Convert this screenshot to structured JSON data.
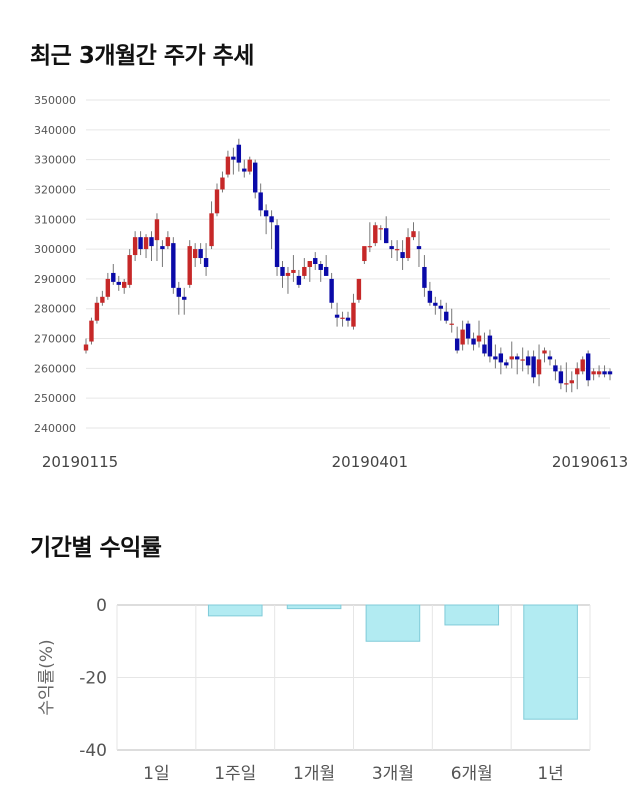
{
  "page": {
    "title_chart1": "최근 3개월간 주가 추세",
    "title_chart2": "기간별 수익률"
  },
  "colors": {
    "up": "#c62828",
    "down": "#0a0aa8",
    "bar_fill": "#b2ebf2",
    "bar_stroke": "#80cbd8",
    "grid": "#e6e6e6"
  },
  "chart_data": [
    {
      "type": "candlestick",
      "title": "최근 3개월간 주가 추세",
      "ylim": [
        240000,
        350000
      ],
      "y_ticks": [
        "350000",
        "340000",
        "330000",
        "320000",
        "310000",
        "300000",
        "290000",
        "280000",
        "270000",
        "260000",
        "250000",
        "240000"
      ],
      "x_tick_labels": [
        "20190115",
        "20190401",
        "20190613"
      ],
      "ohlc": [
        [
          266000,
          270000,
          265000,
          268000
        ],
        [
          269000,
          277000,
          268000,
          276000
        ],
        [
          276000,
          284000,
          275000,
          282000
        ],
        [
          282000,
          286000,
          281000,
          284000
        ],
        [
          284000,
          292000,
          283000,
          290000
        ],
        [
          292000,
          295000,
          288000,
          289000
        ],
        [
          289000,
          291000,
          286000,
          288000
        ],
        [
          287000,
          290000,
          285000,
          289000
        ],
        [
          288000,
          300000,
          287000,
          298000
        ],
        [
          298000,
          306000,
          296000,
          304000
        ],
        [
          304000,
          306000,
          298000,
          300000
        ],
        [
          300000,
          305000,
          297000,
          304000
        ],
        [
          304000,
          306000,
          296000,
          301000
        ],
        [
          303000,
          312000,
          296000,
          310000
        ],
        [
          301000,
          303000,
          294000,
          300000
        ],
        [
          301000,
          306000,
          300000,
          304000
        ],
        [
          302000,
          304000,
          285000,
          287000
        ],
        [
          287000,
          289000,
          278000,
          284000
        ],
        [
          284000,
          287000,
          278000,
          283000
        ],
        [
          288000,
          303000,
          287000,
          301000
        ],
        [
          297000,
          302000,
          294000,
          300000
        ],
        [
          300000,
          302000,
          295000,
          297000
        ],
        [
          297000,
          302000,
          291000,
          294000
        ],
        [
          301000,
          316000,
          300000,
          312000
        ],
        [
          312000,
          322000,
          311000,
          320000
        ],
        [
          320000,
          326000,
          319000,
          324000
        ],
        [
          325000,
          333000,
          324000,
          331000
        ],
        [
          331000,
          334000,
          325000,
          330000
        ],
        [
          335000,
          337000,
          326000,
          329000
        ],
        [
          327000,
          330000,
          324000,
          326000
        ],
        [
          326000,
          331000,
          325000,
          330000
        ],
        [
          329000,
          330000,
          317000,
          319000
        ],
        [
          319000,
          322000,
          311000,
          313000
        ],
        [
          313000,
          315000,
          305000,
          311000
        ],
        [
          311000,
          313000,
          300000,
          309000
        ],
        [
          308000,
          310000,
          291000,
          294000
        ],
        [
          294000,
          296000,
          287000,
          291000
        ],
        [
          291000,
          294000,
          285000,
          292000
        ],
        [
          292000,
          298000,
          289000,
          293000
        ],
        [
          291000,
          293000,
          287000,
          288000
        ],
        [
          291000,
          297000,
          290000,
          294000
        ],
        [
          294000,
          296000,
          289000,
          296000
        ],
        [
          297000,
          299000,
          293000,
          295000
        ],
        [
          295000,
          296000,
          289000,
          293000
        ],
        [
          294000,
          298000,
          291000,
          291000
        ],
        [
          290000,
          292000,
          280000,
          282000
        ],
        [
          278000,
          282000,
          274000,
          277000
        ],
        [
          277000,
          279000,
          274000,
          277000
        ],
        [
          277000,
          279000,
          274000,
          276000
        ],
        [
          274000,
          285000,
          273000,
          282000
        ],
        [
          283000,
          290000,
          282000,
          290000
        ],
        [
          296000,
          300000,
          295000,
          301000
        ],
        [
          301000,
          309000,
          299000,
          301000
        ],
        [
          302000,
          309000,
          301000,
          308000
        ],
        [
          307000,
          308000,
          303000,
          307000
        ],
        [
          307000,
          311000,
          302000,
          302000
        ],
        [
          301000,
          303000,
          297000,
          300000
        ],
        [
          300000,
          303000,
          296000,
          300000
        ],
        [
          299000,
          303000,
          293000,
          297000
        ],
        [
          297000,
          307000,
          296000,
          304000
        ],
        [
          304000,
          309000,
          303000,
          306000
        ],
        [
          301000,
          306000,
          294000,
          300000
        ],
        [
          294000,
          298000,
          284000,
          287000
        ],
        [
          286000,
          289000,
          281000,
          282000
        ],
        [
          282000,
          284000,
          278000,
          281000
        ],
        [
          281000,
          283000,
          276000,
          280000
        ],
        [
          279000,
          282000,
          275000,
          276000
        ],
        [
          275000,
          280000,
          272000,
          275000
        ],
        [
          270000,
          274000,
          265000,
          266000
        ],
        [
          268000,
          276000,
          266000,
          273000
        ],
        [
          275000,
          276000,
          268000,
          270000
        ],
        [
          270000,
          272000,
          266000,
          268000
        ],
        [
          269000,
          276000,
          267000,
          271000
        ],
        [
          268000,
          272000,
          264000,
          265000
        ],
        [
          271000,
          273000,
          262000,
          264000
        ],
        [
          264000,
          268000,
          260000,
          263000
        ],
        [
          265000,
          267000,
          258000,
          262000
        ],
        [
          262000,
          263000,
          260000,
          261000
        ],
        [
          263000,
          269000,
          260000,
          264000
        ],
        [
          264000,
          265000,
          258000,
          263000
        ],
        [
          263000,
          267000,
          259000,
          263000
        ],
        [
          264000,
          266000,
          258000,
          261000
        ],
        [
          264000,
          266000,
          255000,
          257000
        ],
        [
          258000,
          268000,
          254000,
          263000
        ],
        [
          265000,
          267000,
          262000,
          266000
        ],
        [
          264000,
          266000,
          261000,
          263000
        ],
        [
          261000,
          263000,
          256000,
          259000
        ],
        [
          259000,
          261000,
          253000,
          255000
        ],
        [
          255000,
          262000,
          252000,
          255000
        ],
        [
          255000,
          259000,
          252000,
          256000
        ],
        [
          258000,
          262000,
          253000,
          260000
        ],
        [
          259000,
          264000,
          258000,
          263000
        ],
        [
          265000,
          266000,
          254000,
          256000
        ],
        [
          258000,
          260000,
          256000,
          259000
        ],
        [
          258000,
          261000,
          257000,
          259000
        ],
        [
          259000,
          261000,
          257000,
          258000
        ],
        [
          259000,
          260000,
          256000,
          258000
        ]
      ]
    },
    {
      "type": "bar",
      "title": "기간별 수익률",
      "ylabel": "수익률(%)",
      "ylim": [
        -40,
        0
      ],
      "y_ticks": [
        "0",
        "-20",
        "-40"
      ],
      "categories": [
        "1일",
        "1주일",
        "1개월",
        "3개월",
        "6개월",
        "1년"
      ],
      "values": [
        0,
        -3,
        -1,
        -10,
        -5.5,
        -31.5
      ]
    }
  ]
}
